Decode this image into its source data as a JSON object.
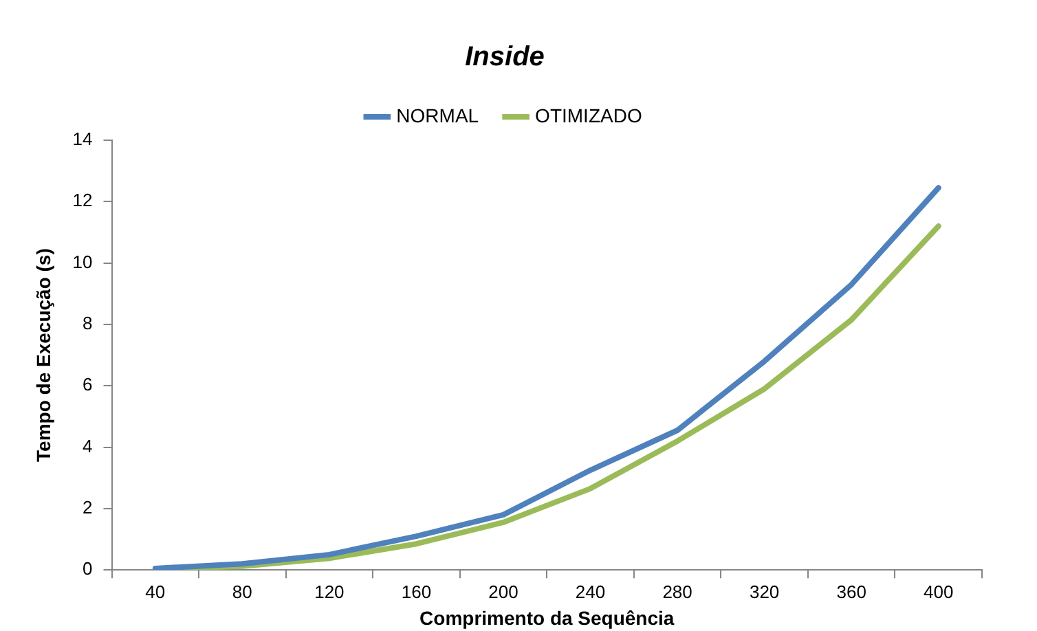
{
  "chart_data": {
    "type": "line",
    "title": "Inside",
    "xlabel": "Comprimento da Sequência",
    "ylabel": "Tempo de Execução (s)",
    "categories": [
      "40",
      "80",
      "120",
      "160",
      "200",
      "240",
      "280",
      "320",
      "360",
      "400"
    ],
    "series": [
      {
        "name": "NORMAL",
        "color": "#4f81bd",
        "values": [
          0.05,
          0.2,
          0.5,
          1.1,
          1.8,
          3.25,
          4.55,
          6.8,
          9.3,
          12.45
        ]
      },
      {
        "name": "OTIMIZADO",
        "color": "#9bbb59",
        "values": [
          0.03,
          0.12,
          0.38,
          0.85,
          1.55,
          2.65,
          4.2,
          5.9,
          8.15,
          11.2
        ]
      }
    ],
    "ylim": [
      0,
      14
    ],
    "yticks": [
      0,
      2,
      4,
      6,
      8,
      10,
      12,
      14
    ],
    "grid": false,
    "legend": "top",
    "marker": "none",
    "line_style": "solid"
  }
}
